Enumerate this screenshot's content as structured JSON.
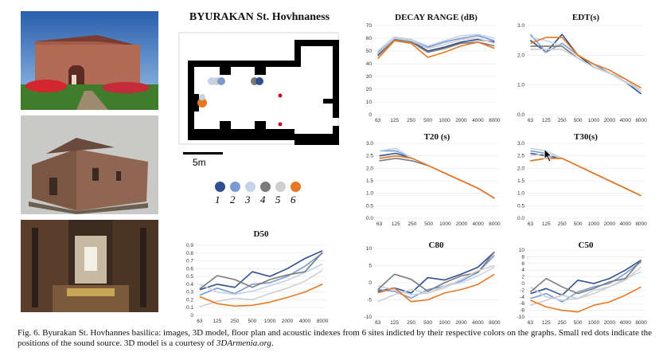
{
  "figure": {
    "title": "BYURAKAN St. Hovhnaness",
    "scale_label": "5m",
    "caption_main": "Fig. 6. Byurakan St. Hovhannes basilica: images, 3D model, floor plan and acoustic indexes from 6 sites indicted by their respective colors on the graphs. Small red dots indicate the positions of the sound source. 3D model is a courtesy of ",
    "caption_link": "3DArmenia.org",
    "caption_end": "."
  },
  "legend": {
    "items": [
      {
        "label": "1",
        "color": "#2f4f8f"
      },
      {
        "label": "2",
        "color": "#7b9bd0"
      },
      {
        "label": "3",
        "color": "#c3d3ea"
      },
      {
        "label": "4",
        "color": "#7a7a7a"
      },
      {
        "label": "5",
        "color": "#cfcfcf"
      },
      {
        "label": "6",
        "color": "#e87722"
      }
    ]
  },
  "colors": {
    "s1": "#2f4f8f",
    "s2": "#7b9bd0",
    "s3": "#c3d3ea",
    "s4": "#7a7a7a",
    "s5": "#cfcfcf",
    "s6": "#e87722"
  },
  "chart_data": [
    {
      "id": "decay",
      "type": "line",
      "title": "DECAY RANGE (dB)",
      "categories": [
        "63",
        "125",
        "250",
        "500",
        "1000",
        "2000",
        "4000",
        "8000"
      ],
      "ylim": [
        0,
        70
      ],
      "yticks": [
        0,
        10,
        20,
        30,
        40,
        50,
        60,
        70
      ],
      "series": [
        {
          "values": [
            47,
            59,
            58,
            50,
            53,
            57,
            59,
            57
          ]
        },
        {
          "values": [
            49,
            60,
            59,
            53,
            57,
            60,
            62,
            58
          ]
        },
        {
          "values": [
            50,
            61,
            59,
            54,
            58,
            62,
            63,
            60
          ]
        },
        {
          "values": [
            46,
            59,
            57,
            49,
            52,
            56,
            57,
            54
          ]
        },
        {
          "values": [
            48,
            60,
            58,
            52,
            55,
            59,
            60,
            56
          ]
        },
        {
          "values": [
            44,
            58,
            56,
            45,
            49,
            54,
            57,
            52
          ]
        }
      ]
    },
    {
      "id": "edt",
      "type": "line",
      "title": "EDT(s)",
      "categories": [
        "63",
        "125",
        "250",
        "500",
        "1000",
        "2000",
        "4000",
        "8000"
      ],
      "ylim": [
        0,
        3
      ],
      "yticks": [
        "0.0",
        "1.0",
        "2.0",
        "3.0"
      ],
      "series": [
        {
          "values": [
            2.5,
            2.1,
            2.7,
            2.0,
            1.6,
            1.4,
            1.1,
            0.7
          ]
        },
        {
          "values": [
            2.7,
            2.1,
            2.4,
            2.0,
            1.7,
            1.4,
            1.2,
            0.8
          ]
        },
        {
          "values": [
            2.6,
            2.5,
            2.3,
            1.9,
            1.6,
            1.4,
            1.2,
            0.8
          ]
        },
        {
          "values": [
            2.3,
            2.3,
            2.3,
            1.9,
            1.6,
            1.4,
            1.1,
            0.8
          ]
        },
        {
          "values": [
            2.2,
            2.2,
            2.2,
            1.9,
            1.6,
            1.4,
            1.1,
            0.8
          ]
        },
        {
          "values": [
            2.4,
            2.6,
            2.6,
            2.0,
            1.7,
            1.5,
            1.2,
            0.9
          ]
        }
      ]
    },
    {
      "id": "t20",
      "type": "line",
      "title": "T20 (s)",
      "categories": [
        "63",
        "125",
        "250",
        "500",
        "1000",
        "2000",
        "4000",
        "8000"
      ],
      "ylim": [
        0,
        3
      ],
      "yticks": [
        "0.0",
        "0.5",
        "1.0",
        "1.5",
        "2.0",
        "2.5",
        "3.0"
      ],
      "series": [
        {
          "values": [
            2.5,
            2.6,
            2.4,
            2.1,
            1.8,
            1.5,
            1.2,
            0.8
          ]
        },
        {
          "values": [
            2.7,
            2.7,
            2.4,
            2.1,
            1.8,
            1.5,
            1.2,
            0.8
          ]
        },
        {
          "values": [
            2.7,
            2.8,
            2.4,
            2.1,
            1.8,
            1.5,
            1.2,
            0.8
          ]
        },
        {
          "values": [
            2.3,
            2.4,
            2.3,
            2.1,
            1.8,
            1.5,
            1.2,
            0.8
          ]
        },
        {
          "values": [
            2.4,
            2.5,
            2.4,
            2.1,
            1.8,
            1.5,
            1.2,
            0.8
          ]
        },
        {
          "values": [
            2.4,
            2.5,
            2.4,
            2.1,
            1.8,
            1.5,
            1.2,
            0.8
          ]
        }
      ]
    },
    {
      "id": "t30",
      "type": "line",
      "title": "T30(s)",
      "categories": [
        "63",
        "125",
        "250",
        "500",
        "1000",
        "2000",
        "4000",
        "8000"
      ],
      "ylim": [
        0,
        3
      ],
      "yticks": [
        "0.0",
        "0.5",
        "1.0",
        "1.5",
        "2.0",
        "2.5",
        "3.0"
      ],
      "series": [
        {
          "values": [
            2.6,
            2.5,
            2.4,
            2.1,
            1.8,
            1.5,
            1.2,
            0.9
          ]
        },
        {
          "values": [
            2.7,
            2.6,
            2.4,
            2.1,
            1.8,
            1.5,
            1.2,
            0.9
          ]
        },
        {
          "values": [
            2.8,
            2.7,
            2.4,
            2.1,
            1.8,
            1.5,
            1.2,
            0.9
          ]
        },
        {
          "values": [
            2.3,
            2.4,
            2.4,
            2.1,
            1.8,
            1.5,
            1.2,
            0.9
          ]
        },
        {
          "values": [
            2.5,
            2.6,
            2.4,
            2.1,
            1.8,
            1.5,
            1.2,
            0.9
          ]
        },
        {
          "values": [
            2.3,
            2.4,
            2.4,
            2.1,
            1.8,
            1.5,
            1.2,
            0.9
          ]
        }
      ]
    },
    {
      "id": "d50",
      "type": "line",
      "title": "D50",
      "categories": [
        "63",
        "125",
        "250",
        "500",
        "1000",
        "2000",
        "4000",
        "8000"
      ],
      "ylim": [
        0,
        0.9
      ],
      "yticks": [
        "0",
        "0.1",
        "0.2",
        "0.3",
        "0.4",
        "0.5",
        "0.6",
        "0.7",
        "0.8",
        "0.9"
      ],
      "series": [
        {
          "values": [
            0.33,
            0.4,
            0.36,
            0.56,
            0.5,
            0.6,
            0.73,
            0.83
          ]
        },
        {
          "values": [
            0.26,
            0.35,
            0.28,
            0.4,
            0.42,
            0.5,
            0.63,
            0.8
          ]
        },
        {
          "values": [
            0.4,
            0.3,
            0.27,
            0.31,
            0.38,
            0.45,
            0.55,
            0.66
          ]
        },
        {
          "values": [
            0.34,
            0.51,
            0.46,
            0.36,
            0.46,
            0.52,
            0.56,
            0.81
          ]
        },
        {
          "values": [
            0.11,
            0.18,
            0.22,
            0.2,
            0.28,
            0.35,
            0.44,
            0.58
          ]
        },
        {
          "values": [
            0.24,
            0.15,
            0.12,
            0.13,
            0.17,
            0.23,
            0.3,
            0.4
          ]
        }
      ]
    },
    {
      "id": "c80",
      "type": "line",
      "title": "C80",
      "categories": [
        "63",
        "125",
        "250",
        "500",
        "1000",
        "2000",
        "4000",
        "8000"
      ],
      "ylim": [
        -10,
        10
      ],
      "yticks": [
        "-10",
        "-5",
        "0",
        "5",
        "10"
      ],
      "series": [
        {
          "values": [
            -2.5,
            -1.5,
            -3.0,
            1.5,
            0.8,
            2.5,
            4.5,
            9.0
          ]
        },
        {
          "values": [
            -2.0,
            -2.5,
            -4.5,
            -2.0,
            -1.0,
            0.5,
            3.0,
            8.0
          ]
        },
        {
          "values": [
            -1.0,
            -2.0,
            -3.5,
            -3.0,
            -1.0,
            0.0,
            2.0,
            4.5
          ]
        },
        {
          "values": [
            -2.0,
            2.5,
            1.0,
            -2.5,
            0.0,
            2.0,
            3.0,
            9.0
          ]
        },
        {
          "values": [
            -5.5,
            -3.5,
            -2.0,
            -3.0,
            -1.5,
            1.0,
            3.5,
            5.0
          ]
        },
        {
          "values": [
            -3.0,
            -1.5,
            -5.5,
            -5.0,
            -3.0,
            -2.0,
            -0.5,
            2.5
          ]
        }
      ]
    },
    {
      "id": "c50",
      "type": "line",
      "title": "C50",
      "categories": [
        "63",
        "125",
        "250",
        "500",
        "1000",
        "2000",
        "4000",
        "8000"
      ],
      "ylim": [
        -10,
        10
      ],
      "yticks": [
        "-10",
        "-8",
        "-6",
        "-4",
        "-2",
        "0",
        "2",
        "4",
        "6",
        "8",
        "10"
      ],
      "series": [
        {
          "values": [
            -3.0,
            -1.5,
            -3.5,
            1.0,
            0.0,
            1.5,
            4.0,
            7.0
          ]
        },
        {
          "values": [
            -4.5,
            -3.0,
            -5.5,
            -2.5,
            -1.0,
            0.0,
            3.0,
            6.5
          ]
        },
        {
          "values": [
            -1.0,
            -4.0,
            -5.0,
            -4.5,
            -2.0,
            -1.0,
            1.5,
            3.5
          ]
        },
        {
          "values": [
            -2.5,
            1.5,
            -1.0,
            -3.0,
            -1.5,
            0.5,
            1.5,
            7.0
          ]
        },
        {
          "values": [
            -6.5,
            -5.0,
            -3.5,
            -4.5,
            -3.0,
            -1.0,
            1.0,
            5.0
          ]
        },
        {
          "values": [
            -5.0,
            -7.0,
            -8.0,
            -8.5,
            -6.5,
            -5.5,
            -3.5,
            -1.0
          ]
        }
      ]
    }
  ]
}
